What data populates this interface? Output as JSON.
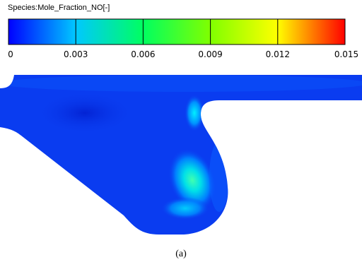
{
  "legend": {
    "title": "Species:Mole_Fraction_NO[-]",
    "min": 0,
    "max": 0.015,
    "ticks": [
      {
        "label": "0",
        "value": 0
      },
      {
        "label": "0.003",
        "value": 0.003
      },
      {
        "label": "0.006",
        "value": 0.006
      },
      {
        "label": "0.009",
        "value": 0.009
      },
      {
        "label": "0.012",
        "value": 0.012
      },
      {
        "label": "0.015",
        "value": 0.015
      }
    ],
    "colormap": [
      "#0000ff",
      "#00ffff",
      "#00ff00",
      "#ffff00",
      "#ff0000"
    ]
  },
  "field": {
    "background_color": "#0a3cf0",
    "hotspot_level": 0.006
  },
  "caption": "(a)"
}
